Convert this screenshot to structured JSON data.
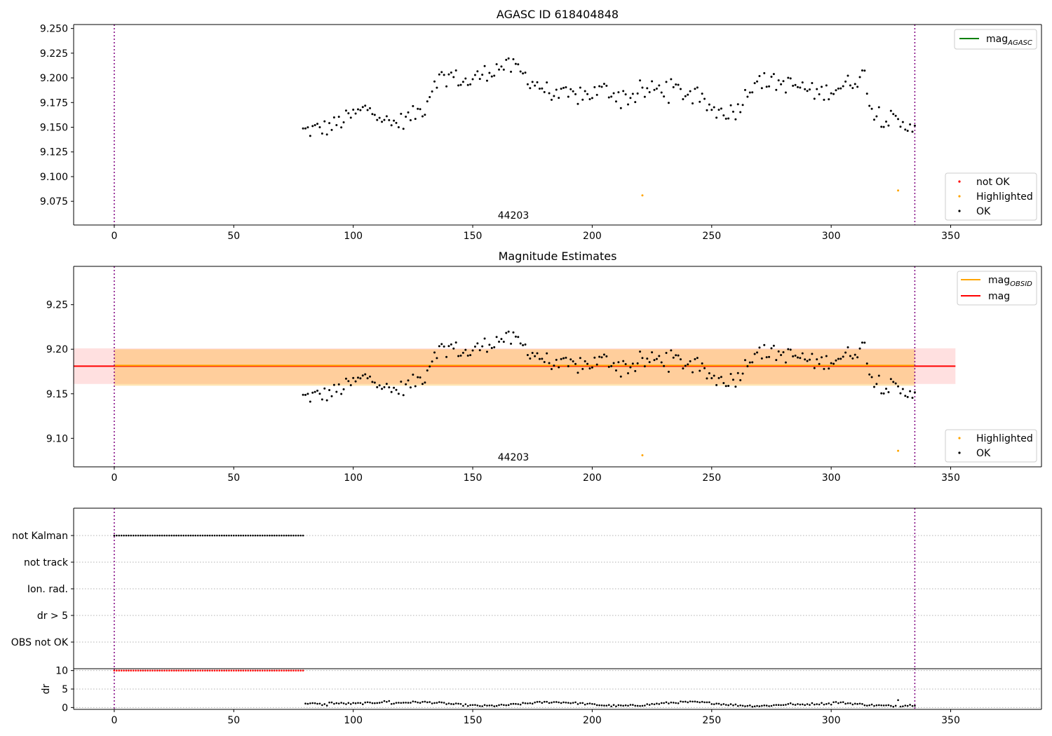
{
  "chart_data": [
    {
      "type": "scatter",
      "title": "AGASC ID 618404848",
      "xlim": [
        -17,
        388
      ],
      "ylim": [
        9.051,
        9.254
      ],
      "xticks": [
        "0",
        "50",
        "100",
        "150",
        "200",
        "250",
        "300",
        "350"
      ],
      "yticks": [
        "9.075",
        "9.100",
        "9.125",
        "9.150",
        "9.175",
        "9.200",
        "9.225",
        "9.250"
      ],
      "vlines": [
        0,
        335
      ],
      "annotation": "44203",
      "legend_top": {
        "position": "upper right",
        "label": "mag",
        "subscript": "AGASC",
        "color": "#008000"
      },
      "legend_bottom": {
        "position": "lower right",
        "entries": [
          {
            "label": "not OK",
            "color": "#ff0000"
          },
          {
            "label": "Highlighted",
            "color": "#ffa500"
          },
          {
            "label": "OK",
            "color": "#000000"
          }
        ]
      },
      "series": [
        {
          "name": "OK",
          "color": "#000000",
          "x_start": 79,
          "x_end": 335
        },
        {
          "name": "Highlighted",
          "color": "#ffa500",
          "points": [
            [
              221,
              9.081
            ],
            [
              328,
              9.086
            ]
          ]
        }
      ]
    },
    {
      "type": "scatter",
      "title": "Magnitude Estimates",
      "xlim": [
        -17,
        388
      ],
      "ylim": [
        9.068,
        9.293
      ],
      "xticks": [
        "0",
        "50",
        "100",
        "150",
        "200",
        "250",
        "300",
        "350"
      ],
      "yticks": [
        "9.10",
        "9.15",
        "9.20",
        "9.25"
      ],
      "vlines": [
        0,
        335
      ],
      "annotation": "44203",
      "mag": 9.181,
      "mag_band": [
        9.161,
        9.201
      ],
      "mag_obsid_band": [
        9.159,
        9.2
      ],
      "legend_top": {
        "position": "upper right",
        "entries": [
          {
            "label": "mag",
            "subscript": "OBSID",
            "color": "#ffa500"
          },
          {
            "label": "mag",
            "subscript": "",
            "color": "#ff0000"
          }
        ]
      },
      "legend_bottom": {
        "position": "lower right",
        "entries": [
          {
            "label": "Highlighted",
            "color": "#ffa500"
          },
          {
            "label": "OK",
            "color": "#000000"
          }
        ]
      },
      "series": [
        {
          "name": "OK",
          "color": "#000000",
          "x_start": 79,
          "x_end": 335
        },
        {
          "name": "Highlighted",
          "color": "#ffa500",
          "points": [
            [
              221,
              9.081
            ],
            [
              328,
              9.086
            ]
          ]
        }
      ]
    },
    {
      "type": "scatter",
      "categories": [
        "not Kalman",
        "not track",
        "Ion. rad.",
        "dr > 5",
        "OBS not OK"
      ],
      "flag_series": {
        "category": "not Kalman",
        "x_start": 0,
        "x_end": 79,
        "color": "#000000"
      },
      "xlim": [
        -17,
        388
      ],
      "vlines": [
        0,
        335
      ]
    },
    {
      "type": "scatter",
      "ylabel": "dr",
      "xlim": [
        -17,
        388
      ],
      "ylim": [
        -0.5,
        10.5
      ],
      "yticks": [
        "0",
        "5",
        "10"
      ],
      "xticks": [
        "0",
        "50",
        "100",
        "150",
        "200",
        "250",
        "300",
        "350"
      ],
      "vlines": [
        0,
        335
      ],
      "series": [
        {
          "name": "not OK",
          "color": "#ff0000",
          "x_start": 0,
          "x_end": 79,
          "value": 10
        },
        {
          "name": "OK",
          "color": "#000000",
          "x_start": 80,
          "x_end": 335
        }
      ]
    }
  ]
}
